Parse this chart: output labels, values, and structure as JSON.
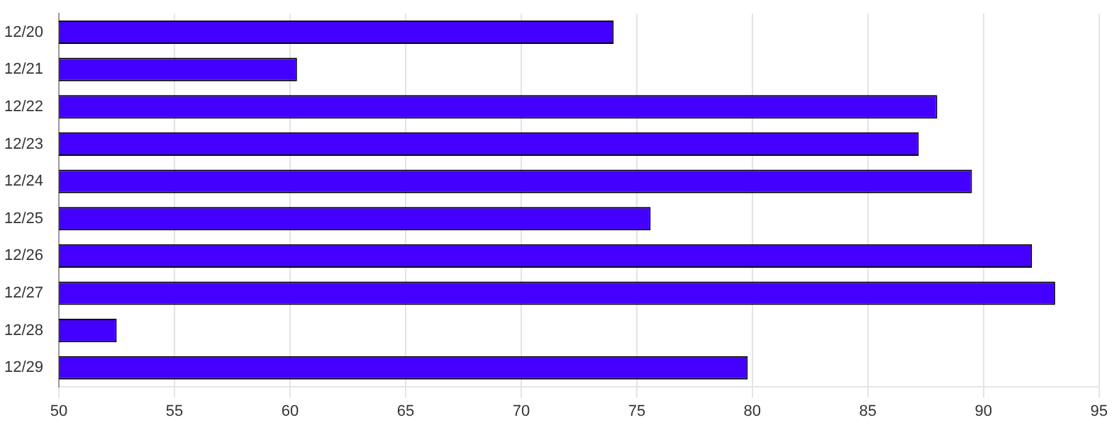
{
  "chart_data": {
    "type": "bar",
    "orientation": "horizontal",
    "categories": [
      "12/20",
      "12/21",
      "12/22",
      "12/23",
      "12/24",
      "12/25",
      "12/26",
      "12/27",
      "12/28",
      "12/29"
    ],
    "values": [
      74.0,
      60.3,
      88.0,
      87.2,
      89.5,
      75.6,
      92.1,
      93.1,
      52.5,
      79.8
    ],
    "color": "#4400ff",
    "xlim": [
      50,
      95
    ],
    "xticks": [
      50,
      55,
      60,
      65,
      70,
      75,
      80,
      85,
      90,
      95
    ],
    "grid": "x",
    "legend": false
  }
}
